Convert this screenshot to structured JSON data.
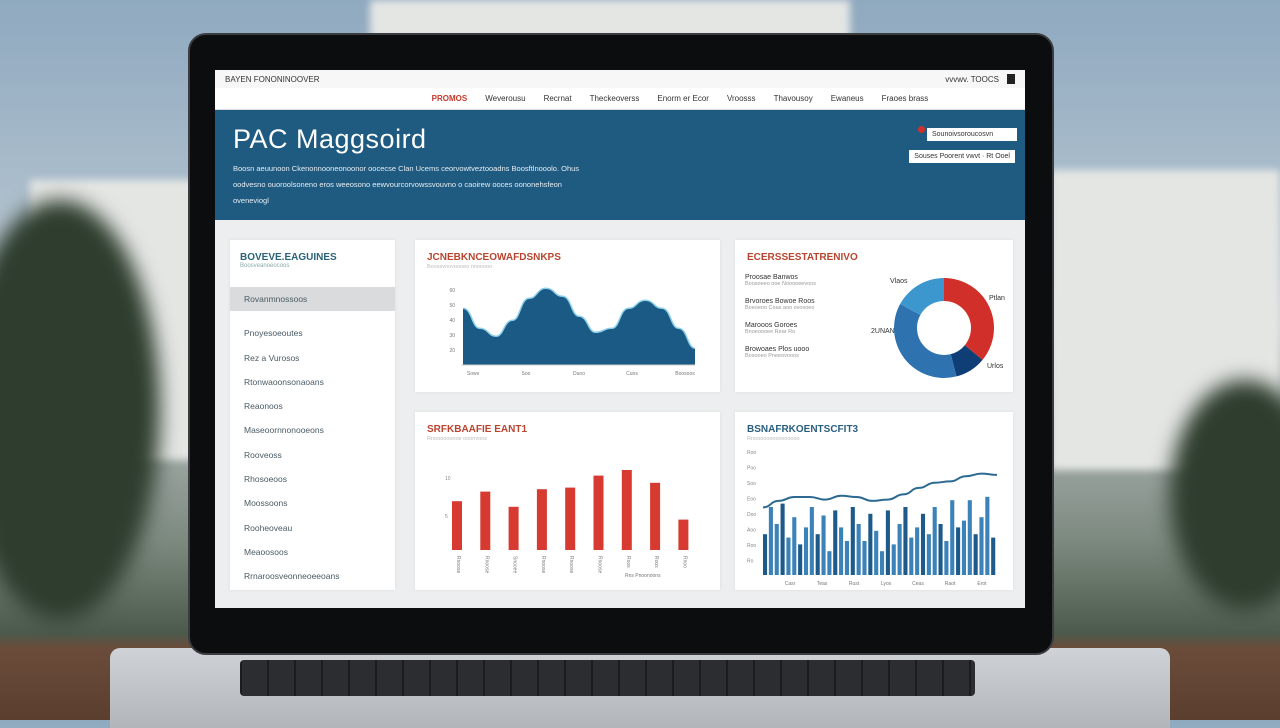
{
  "window": {
    "brand": "BAYEN FONONINOOVER",
    "top_right": "vvvwv. TOOCS"
  },
  "nav": [
    {
      "label": "PROMOS",
      "active": true
    },
    {
      "label": "Weverousu"
    },
    {
      "label": "Recrnat"
    },
    {
      "label": "Theckeoverss"
    },
    {
      "label": "Enorm er Ecor"
    },
    {
      "label": "Vroosss"
    },
    {
      "label": "Thavousoy"
    },
    {
      "label": "Ewaneus"
    },
    {
      "label": "Fraoes brass"
    }
  ],
  "hero": {
    "title": "PAC Maggsoird",
    "description": "Boosn aeuunoon Ckenonnooneonoonor oocecse Clan Ucems ceorvowtveztooadns Boosftlnooolo. Ohus oodvesno ouoroolsoneno eros weeosono eewvourcorvowssvouvno o caoirew ooces oononehsfeon oveneviogl",
    "note_title": "Sounoivsoroucosvn",
    "note_sub": "Souses Poorent vwvt · Rt Ooel"
  },
  "sidebar": {
    "title": "BOVEVE.EAGUINES",
    "subtitle": "Boosveanoeocoos",
    "items": [
      "Rovanmnossoos",
      "Pnoyesoeoutes",
      "Rez a Vurosos",
      "Rtonwaoonsonaoans",
      "Reaonoos",
      "Maseoornnonooeons",
      "Rooveoss",
      "Rhosoeoos",
      "Moossoons",
      "Rooheoveau",
      "Meaoosoos",
      "Rrnaroosveonneoeeoans"
    ],
    "selected": 0
  },
  "colors": {
    "brand": "#1f5a80",
    "accent": "#c0392b",
    "bar": "#d63a30",
    "donut": [
      "#d1302a",
      "#0f3d75",
      "#2f72b0",
      "#3d97cf"
    ]
  },
  "chart_data": [
    {
      "type": "area",
      "title": "JCNEBKNCEOWAFDSNKPS",
      "subtitle": "Boossvnovoooeo nnooooo",
      "yticks": [
        "60",
        "50",
        "40",
        "30",
        "20"
      ],
      "xticks": [
        "Sows",
        "Soo",
        "Duoo",
        "Cuos",
        "Boosoos"
      ],
      "values": [
        28,
        18,
        14,
        22,
        33,
        38,
        34,
        24,
        16,
        18,
        28,
        32,
        28,
        18,
        8
      ]
    },
    {
      "type": "pie",
      "title": "ECERSSESTATRENIVO",
      "labels": [
        "Vlaos",
        "Ptlan",
        "Urlos",
        "2UNAN"
      ],
      "values": [
        36,
        10,
        37,
        17
      ],
      "legend": [
        {
          "label": "Proosae Banwos",
          "sub": "Boosoeeo ooe Nooooeevoos"
        },
        {
          "label": "Brvoroes Bowoe Roos",
          "sub": "Boeoeoo Coas aoo ovosoeo"
        },
        {
          "label": "Marooos Goroes",
          "sub": "Bnoeoooee Rear Ro"
        },
        {
          "label": "Browoaes Plos uooo",
          "sub": "Bosooeo Pneeovooos"
        }
      ]
    },
    {
      "type": "bar",
      "title": "SRFKBAAFIE EANT1",
      "subtitle": "Rnoooooonoe ooonvoos",
      "yticks": [
        "10",
        "5"
      ],
      "categories": [
        "Rnoose",
        "Rnoose",
        "Snooee",
        "Rnoose",
        "Rnoose",
        "Rnoose",
        "Roos",
        "Roos",
        "Rnoo"
      ],
      "values": [
        6.1,
        7.3,
        5.4,
        7.6,
        7.8,
        9.3,
        10,
        8.4,
        3.8
      ],
      "annotation": "Rns Pnoonoons"
    },
    {
      "type": "bar+line",
      "title": "BSNAFRKOENTSCFIT3",
      "subtitle": "Rnooooooooovooooo",
      "yticks": [
        "Roo",
        "Poo",
        "Soo",
        "Eoo",
        "Doo",
        "Aoo",
        "Roo",
        "Ro"
      ],
      "xticks": [
        "Casr",
        "Teas",
        "Rust",
        "Lyos",
        "Ceas",
        "Raot",
        "Erot"
      ],
      "line": [
        52,
        57,
        60,
        60,
        58,
        61,
        60,
        57,
        58,
        62,
        67,
        71,
        72,
        76,
        78,
        77
      ],
      "bars": [
        24,
        40,
        30,
        42,
        22,
        34,
        18,
        28,
        40,
        24,
        35,
        14,
        38,
        28,
        20,
        40,
        30,
        20,
        36,
        26,
        14,
        38,
        18,
        30,
        40,
        22,
        28,
        36,
        24,
        40,
        30,
        20,
        44,
        28,
        32,
        44,
        24,
        34,
        46,
        22
      ]
    }
  ]
}
